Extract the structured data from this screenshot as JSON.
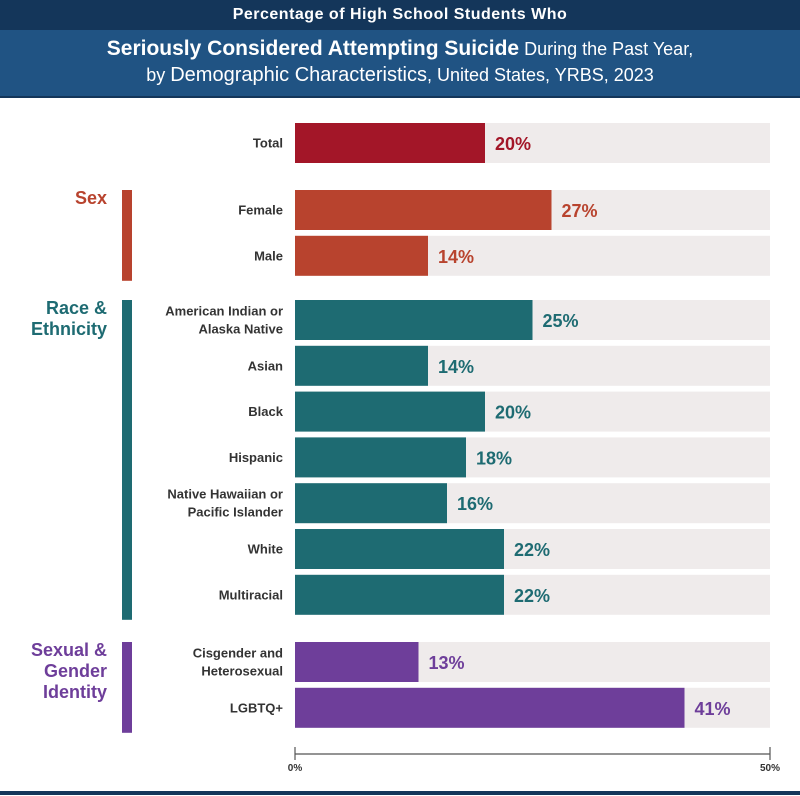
{
  "header": {
    "top_line": "Percentage of High School Students Who",
    "title_bold": "Seriously Considered Attempting Suicide",
    "title_rest": " During the Past Year,",
    "title2_pre": "by ",
    "title2_bold": "Demographic Characteristics",
    "title2_rest": ", United States, YRBS, 2023"
  },
  "colors": {
    "total": "#a31628",
    "sex": "#b8432e",
    "race": "#1e6b72",
    "sexual": "#6e3e9a",
    "track": "#efebeb"
  },
  "chart_data": {
    "type": "bar",
    "orientation": "horizontal",
    "xlim": [
      0,
      50
    ],
    "xticks": [
      "0%",
      "50%"
    ],
    "groups": [
      {
        "name": "",
        "color_key": "total",
        "categories": [
          {
            "label": [
              "Total"
            ],
            "value": 20,
            "text": "20%"
          }
        ]
      },
      {
        "name": [
          "Sex"
        ],
        "color_key": "sex",
        "categories": [
          {
            "label": [
              "Female"
            ],
            "value": 27,
            "text": "27%"
          },
          {
            "label": [
              "Male"
            ],
            "value": 14,
            "text": "14%"
          }
        ]
      },
      {
        "name": [
          "Race &",
          "Ethnicity"
        ],
        "color_key": "race",
        "categories": [
          {
            "label": [
              "American Indian or",
              "Alaska Native"
            ],
            "value": 25,
            "text": "25%"
          },
          {
            "label": [
              "Asian"
            ],
            "value": 14,
            "text": "14%"
          },
          {
            "label": [
              "Black"
            ],
            "value": 20,
            "text": "20%"
          },
          {
            "label": [
              "Hispanic"
            ],
            "value": 18,
            "text": "18%"
          },
          {
            "label": [
              "Native Hawaiian or",
              "Pacific Islander"
            ],
            "value": 16,
            "text": "16%"
          },
          {
            "label": [
              "White"
            ],
            "value": 22,
            "text": "22%"
          },
          {
            "label": [
              "Multiracial"
            ],
            "value": 22,
            "text": "22%"
          }
        ]
      },
      {
        "name": [
          "Sexual &",
          "Gender",
          "Identity"
        ],
        "color_key": "sexual",
        "categories": [
          {
            "label": [
              "Cisgender and",
              "Heterosexual"
            ],
            "value": 13,
            "text": "13%"
          },
          {
            "label": [
              "LGBTQ+"
            ],
            "value": 41,
            "text": "41%"
          }
        ]
      }
    ]
  }
}
